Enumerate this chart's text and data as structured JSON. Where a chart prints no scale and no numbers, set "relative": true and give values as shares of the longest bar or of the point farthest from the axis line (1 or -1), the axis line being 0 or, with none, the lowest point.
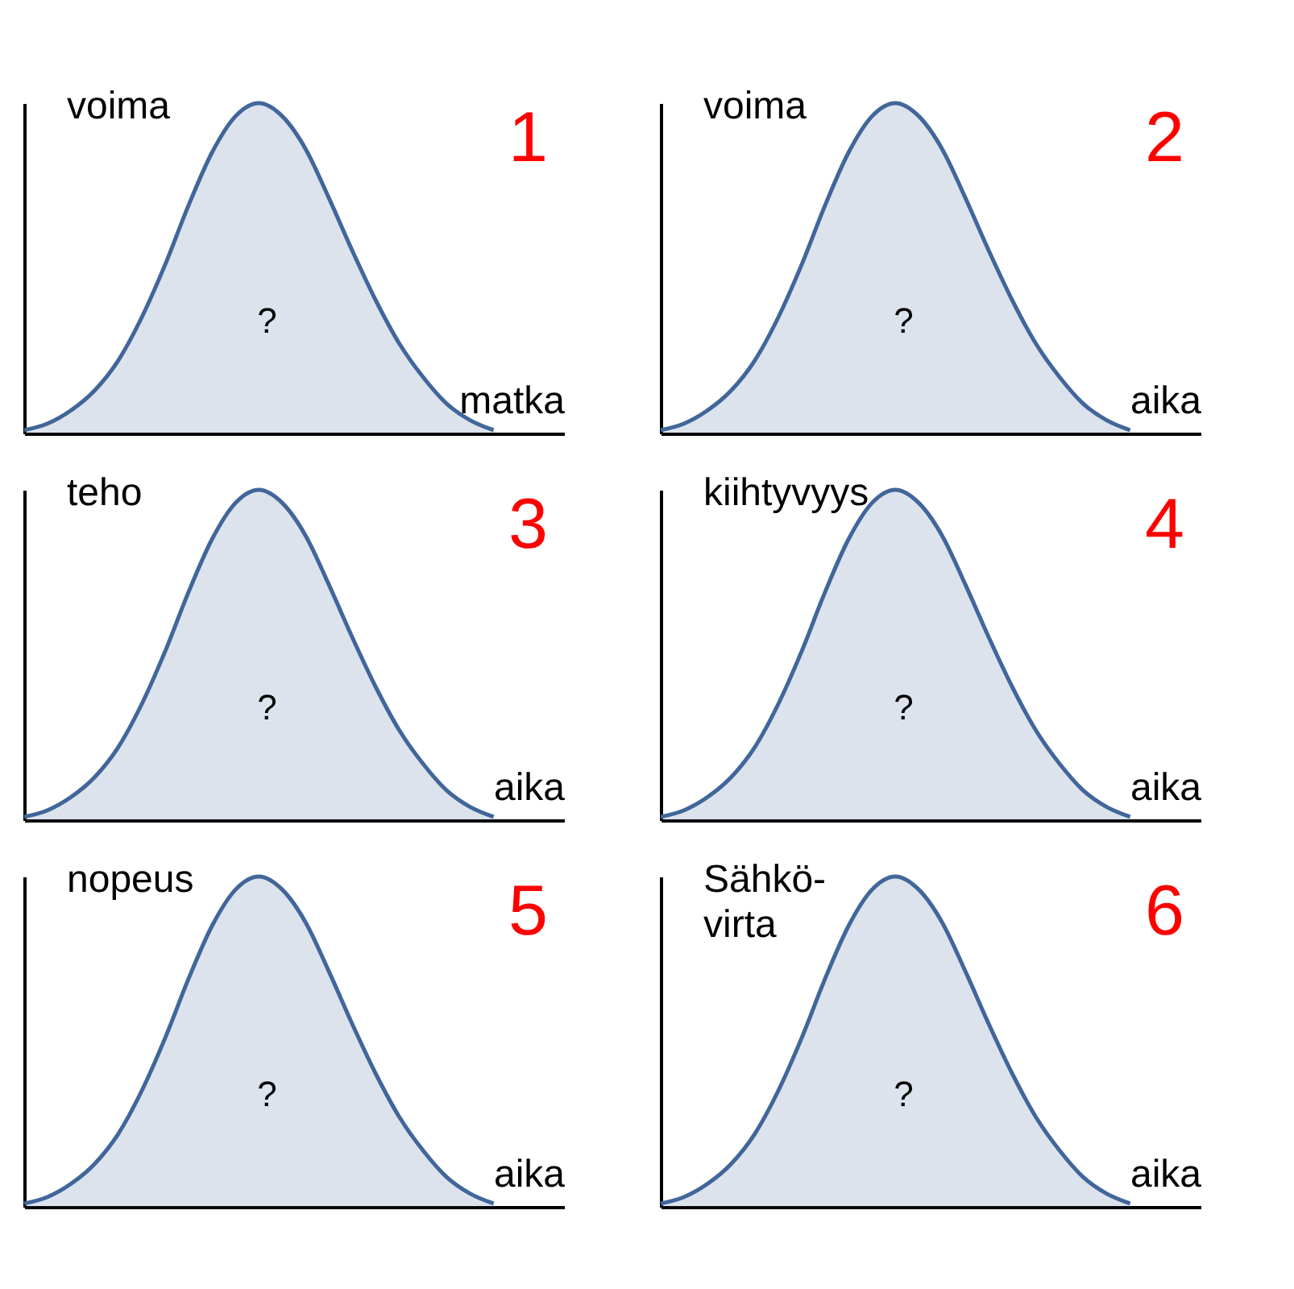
{
  "chart_data": [
    {
      "type": "area",
      "title": "1",
      "ylabel": "voima",
      "xlabel": "matka",
      "annotations": [
        "?"
      ],
      "relative": true,
      "tick_labels": false,
      "grid": false,
      "categories": [
        null,
        null,
        null,
        null,
        null,
        null,
        null,
        null,
        null,
        null,
        null,
        null,
        null,
        null,
        null,
        null,
        null,
        null,
        null,
        null,
        null,
        null,
        null,
        null
      ],
      "series": [
        {
          "color": "#41669a",
          "values": [
            0.01,
            0.03,
            0.07,
            0.13,
            0.22,
            0.35,
            0.51,
            0.69,
            0.85,
            0.96,
            1,
            0.96,
            0.86,
            0.71,
            0.55,
            0.4,
            0.27,
            0.17,
            0.09,
            0.04,
            0.01,
            null,
            null,
            null
          ]
        }
      ]
    },
    {
      "type": "area",
      "title": "2",
      "ylabel": "voima",
      "xlabel": "aika",
      "annotations": [
        "?"
      ],
      "relative": true,
      "tick_labels": false,
      "grid": false,
      "categories": [
        null,
        null,
        null,
        null,
        null,
        null,
        null,
        null,
        null,
        null,
        null,
        null,
        null,
        null,
        null,
        null,
        null,
        null,
        null,
        null,
        null,
        null,
        null,
        null
      ],
      "series": [
        {
          "color": "#41669a",
          "values": [
            0.01,
            0.03,
            0.07,
            0.13,
            0.22,
            0.35,
            0.51,
            0.69,
            0.85,
            0.96,
            1,
            0.96,
            0.86,
            0.71,
            0.55,
            0.4,
            0.27,
            0.17,
            0.09,
            0.04,
            0.01,
            null,
            null,
            null
          ]
        }
      ]
    },
    {
      "type": "area",
      "title": "3",
      "ylabel": "teho",
      "xlabel": "aika",
      "annotations": [
        "?"
      ],
      "relative": true,
      "tick_labels": false,
      "grid": false,
      "categories": [
        null,
        null,
        null,
        null,
        null,
        null,
        null,
        null,
        null,
        null,
        null,
        null,
        null,
        null,
        null,
        null,
        null,
        null,
        null,
        null,
        null,
        null,
        null,
        null
      ],
      "series": [
        {
          "color": "#41669a",
          "values": [
            0.01,
            0.03,
            0.07,
            0.13,
            0.22,
            0.35,
            0.51,
            0.69,
            0.85,
            0.96,
            1,
            0.96,
            0.86,
            0.71,
            0.55,
            0.4,
            0.27,
            0.17,
            0.09,
            0.04,
            0.01,
            null,
            null,
            null
          ]
        }
      ]
    },
    {
      "type": "area",
      "title": "4",
      "ylabel": "kiihtyvyys",
      "xlabel": "aika",
      "annotations": [
        "?"
      ],
      "relative": true,
      "tick_labels": false,
      "grid": false,
      "categories": [
        null,
        null,
        null,
        null,
        null,
        null,
        null,
        null,
        null,
        null,
        null,
        null,
        null,
        null,
        null,
        null,
        null,
        null,
        null,
        null,
        null,
        null,
        null,
        null
      ],
      "series": [
        {
          "color": "#41669a",
          "values": [
            0.01,
            0.03,
            0.07,
            0.13,
            0.22,
            0.35,
            0.51,
            0.69,
            0.85,
            0.96,
            1,
            0.96,
            0.86,
            0.71,
            0.55,
            0.4,
            0.27,
            0.17,
            0.09,
            0.04,
            0.01,
            null,
            null,
            null
          ]
        }
      ]
    },
    {
      "type": "area",
      "title": "5",
      "ylabel": "nopeus",
      "xlabel": "aika",
      "annotations": [
        "?"
      ],
      "relative": true,
      "tick_labels": false,
      "grid": false,
      "categories": [
        null,
        null,
        null,
        null,
        null,
        null,
        null,
        null,
        null,
        null,
        null,
        null,
        null,
        null,
        null,
        null,
        null,
        null,
        null,
        null,
        null,
        null,
        null,
        null
      ],
      "series": [
        {
          "color": "#41669a",
          "values": [
            0.01,
            0.03,
            0.07,
            0.13,
            0.22,
            0.35,
            0.51,
            0.69,
            0.85,
            0.96,
            1,
            0.96,
            0.86,
            0.71,
            0.55,
            0.4,
            0.27,
            0.17,
            0.09,
            0.04,
            0.01,
            null,
            null,
            null
          ]
        }
      ]
    },
    {
      "type": "area",
      "title": "6",
      "ylabel": "Sähkö-virta",
      "xlabel": "aika",
      "annotations": [
        "?"
      ],
      "relative": true,
      "tick_labels": false,
      "grid": false,
      "categories": [
        null,
        null,
        null,
        null,
        null,
        null,
        null,
        null,
        null,
        null,
        null,
        null,
        null,
        null,
        null,
        null,
        null,
        null,
        null,
        null,
        null,
        null,
        null,
        null
      ],
      "series": [
        {
          "color": "#41669a",
          "values": [
            0.01,
            0.03,
            0.07,
            0.13,
            0.22,
            0.35,
            0.51,
            0.69,
            0.85,
            0.96,
            1,
            0.96,
            0.86,
            0.71,
            0.55,
            0.4,
            0.27,
            0.17,
            0.09,
            0.04,
            0.01,
            null,
            null,
            null
          ]
        }
      ]
    }
  ]
}
